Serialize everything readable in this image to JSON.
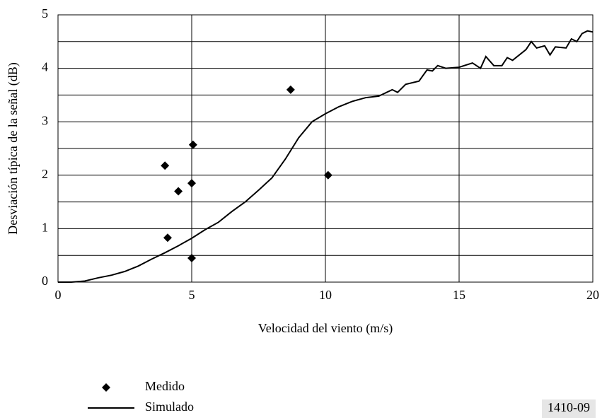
{
  "chart_data": {
    "type": "line",
    "x_label": "Velocidad del viento (m/s)",
    "y_label": "Desviación típica de la señal (dB)",
    "figure_id": "1410-09",
    "xlim": [
      0,
      20
    ],
    "xticks": [
      0,
      5,
      10,
      15,
      20
    ],
    "ylim": [
      0,
      5
    ],
    "yticks": [
      0,
      1,
      2,
      3,
      4,
      5
    ],
    "ygrid": [
      0.5,
      1,
      1.5,
      2,
      2.5,
      3,
      3.5,
      4,
      4.5,
      5
    ],
    "grid": true,
    "series": [
      {
        "name": "Medido",
        "color": "#000000",
        "style": "markers",
        "x": [
          4.0,
          4.1,
          4.5,
          5.0,
          5.05,
          5.0,
          8.7,
          10.1
        ],
        "values": [
          2.18,
          0.83,
          1.7,
          1.85,
          2.57,
          0.45,
          3.6,
          2.0
        ]
      },
      {
        "name": "Simulado",
        "color": "#000000",
        "style": "line",
        "x": [
          0,
          0.5,
          1,
          1.5,
          2,
          2.5,
          3,
          3.5,
          4,
          4.5,
          5,
          5.5,
          6,
          6.5,
          7,
          7.5,
          8,
          8.5,
          9,
          9.5,
          10,
          10.5,
          11,
          11.5,
          12,
          12.5,
          12.7,
          13,
          13.5,
          13.8,
          14,
          14.2,
          14.5,
          15,
          15.5,
          15.8,
          16,
          16.3,
          16.6,
          16.8,
          17,
          17.5,
          17.7,
          17.9,
          18.2,
          18.4,
          18.6,
          19,
          19.2,
          19.4,
          19.6,
          19.8,
          20
        ],
        "values": [
          0,
          0,
          0.02,
          0.08,
          0.13,
          0.2,
          0.3,
          0.43,
          0.55,
          0.68,
          0.82,
          0.98,
          1.12,
          1.32,
          1.5,
          1.72,
          1.95,
          2.3,
          2.7,
          3.0,
          3.15,
          3.28,
          3.38,
          3.45,
          3.48,
          3.6,
          3.55,
          3.7,
          3.76,
          3.97,
          3.95,
          4.05,
          4.0,
          4.02,
          4.1,
          4.0,
          4.22,
          4.05,
          4.05,
          4.2,
          4.15,
          4.35,
          4.5,
          4.38,
          4.42,
          4.25,
          4.4,
          4.38,
          4.55,
          4.5,
          4.65,
          4.7,
          4.68
        ]
      }
    ]
  }
}
